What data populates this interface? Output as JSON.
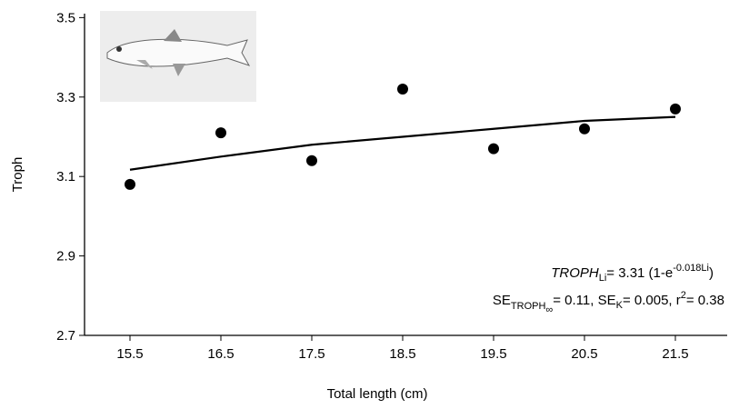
{
  "chart_data": {
    "type": "scatter",
    "y_label": "Troph",
    "x_label": "Total length (cm)",
    "x": [
      15.5,
      16.5,
      17.5,
      18.5,
      19.5,
      20.5,
      21.5
    ],
    "series": [
      {
        "color": "#000000",
        "values": [
          3.08,
          3.21,
          3.14,
          3.32,
          3.17,
          3.22,
          3.27
        ]
      }
    ],
    "fit": {
      "color": "#000000",
      "x": [
        15.5,
        16.5,
        17.5,
        18.5,
        19.5,
        20.5,
        21.5
      ],
      "values": [
        3.117,
        3.15,
        3.18,
        3.2,
        3.22,
        3.24,
        3.25
      ]
    },
    "xlim": [
      15,
      22
    ],
    "ylim": [
      2.7,
      3.51
    ],
    "xticks": [
      15.5,
      16.5,
      17.5,
      18.5,
      19.5,
      20.5,
      21.5
    ],
    "yticks": [
      2.7,
      2.9,
      3.1,
      3.3,
      3.5
    ],
    "equation": {
      "lhs": "TROPH",
      "lhs_sub": "Li",
      "rhs": "= 3.31 (1-e",
      "exp": "-0.018Li",
      "close": ")"
    },
    "stats": {
      "a": "SE",
      "a_sub": "TROPH",
      "a_sub2": "∞",
      "b": "= 0.11, SE",
      "b_sub": "K",
      "c": "= 0.005, r",
      "c_sup": "2",
      "d": "= 0.38"
    }
  }
}
